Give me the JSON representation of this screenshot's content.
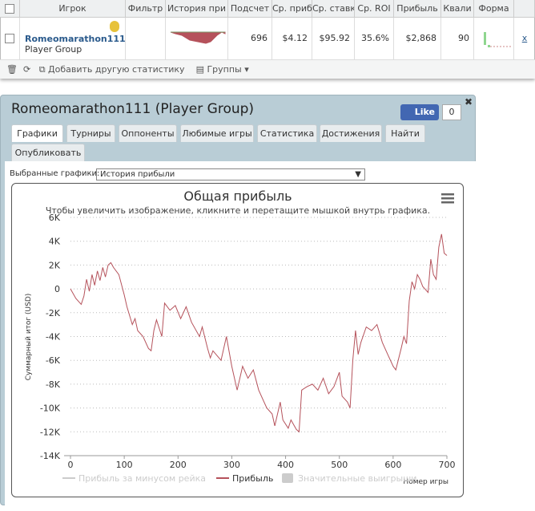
{
  "table": {
    "headers": [
      "Игрок",
      "Фильтр",
      "История при",
      "Подсчет",
      "Ср. приб",
      "Ср. ставк",
      "Ср. ROI",
      "Прибыль",
      "Квали",
      "Форма"
    ],
    "row": {
      "player": "Romeomarathon111",
      "group": "Player Group",
      "cells": [
        "696",
        "$4.12",
        "$95.92",
        "35.6%",
        "$2,868",
        "90"
      ],
      "remove": "x"
    }
  },
  "toolbar": {
    "add_stat": "Добавить другую статистику",
    "groups": "Группы"
  },
  "panel": {
    "title": "Romeomarathon111 (Player Group)",
    "like": "Like",
    "like_count": "0",
    "tabs": [
      "Графики",
      "Турниры",
      "Оппоненты",
      "Любимые игры",
      "Статистика",
      "Достижения",
      "Найти",
      "Опубликовать"
    ],
    "selector_label": "Выбранные графики:",
    "selector_value": "История прибыли"
  },
  "chart_data": {
    "type": "line",
    "title": "Общая прибыль",
    "subtitle": "Чтобы увеличить изображение, кликните и перетащите мышкой внутрь графика.",
    "y_label": "Суммарный итог (USD)",
    "x_label": "Номер игры",
    "xlim": [
      0,
      700
    ],
    "xticks": [
      0,
      100,
      200,
      300,
      400,
      500,
      600,
      700
    ],
    "ylim": [
      -14000,
      6000
    ],
    "yticks": [
      {
        "value": -14000,
        "label": "-14K"
      },
      {
        "value": -12000,
        "label": "-12K"
      },
      {
        "value": -10000,
        "label": "-10K"
      },
      {
        "value": -8000,
        "label": "-8K"
      },
      {
        "value": -6000,
        "label": "-6K"
      },
      {
        "value": -4000,
        "label": "-4K"
      },
      {
        "value": -2000,
        "label": "-2K"
      },
      0,
      {
        "value": 2000,
        "label": "2K"
      },
      {
        "value": 4000,
        "label": "4K"
      },
      {
        "value": 6000,
        "label": "6K"
      }
    ],
    "grid": true,
    "series": [
      {
        "name": "Прибыль за минусом рейка",
        "color": "#cccccc",
        "hidden": true,
        "x": [],
        "values": []
      },
      {
        "name": "Прибыль",
        "color": "#b5525b",
        "x": [
          0,
          10,
          20,
          25,
          30,
          35,
          40,
          45,
          50,
          55,
          60,
          65,
          70,
          75,
          80,
          90,
          100,
          105,
          115,
          120,
          125,
          135,
          145,
          150,
          155,
          160,
          170,
          175,
          185,
          195,
          205,
          215,
          225,
          240,
          245,
          255,
          260,
          265,
          280,
          290,
          300,
          310,
          320,
          330,
          340,
          350,
          360,
          365,
          375,
          380,
          390,
          395,
          405,
          410,
          420,
          425,
          430,
          440,
          450,
          460,
          470,
          480,
          490,
          500,
          505,
          515,
          520,
          525,
          530,
          535,
          540,
          550,
          560,
          570,
          580,
          590,
          600,
          605,
          615,
          620,
          625,
          630,
          635,
          640,
          645,
          650,
          655,
          665,
          670,
          675,
          680,
          685,
          690,
          695,
          700
        ],
        "values": [
          0,
          -800,
          -1300,
          -600,
          800,
          -200,
          1200,
          300,
          1500,
          700,
          1800,
          1000,
          2000,
          2200,
          1800,
          1200,
          -500,
          -1500,
          -3000,
          -2500,
          -3500,
          -4000,
          -5000,
          -5200,
          -3500,
          -2600,
          -4000,
          -1200,
          -1800,
          -1400,
          -2500,
          -1500,
          -2800,
          -4000,
          -3200,
          -5000,
          -5800,
          -5200,
          -6000,
          -4000,
          -6500,
          -8500,
          -6500,
          -7500,
          -6800,
          -8500,
          -9500,
          -10000,
          -10500,
          -11500,
          -9500,
          -11000,
          -11700,
          -11000,
          -11800,
          -12000,
          -8500,
          -8200,
          -8000,
          -8500,
          -7500,
          -8800,
          -8200,
          -7000,
          -9000,
          -9500,
          -10000,
          -6000,
          -3500,
          -5500,
          -4500,
          -3200,
          -3500,
          -3000,
          -4500,
          -5500,
          -6500,
          -6800,
          -5000,
          -4000,
          -4600,
          -1000,
          600,
          0,
          1200,
          800,
          200,
          -300,
          2500,
          1200,
          800,
          3500,
          4600,
          3000,
          2800
        ]
      },
      {
        "name": "Значительные выигрыши",
        "color": "#cccccc",
        "hidden": true,
        "x": [],
        "values": []
      }
    ]
  }
}
